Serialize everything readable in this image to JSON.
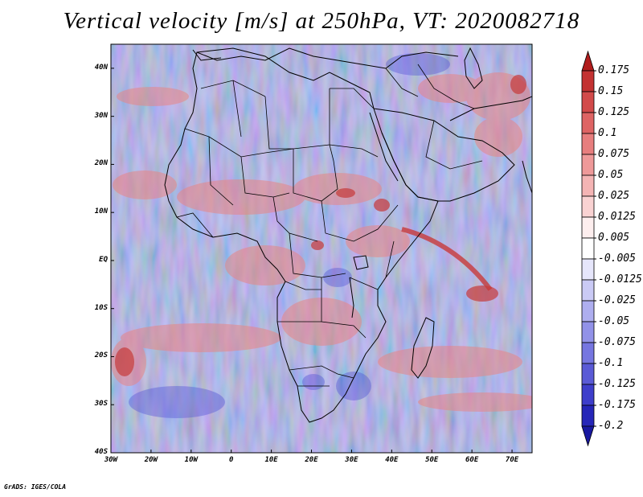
{
  "title": "Vertical velocity [m/s] at 250hPa, VT: 2020082718",
  "credit": "GrADS: IGES/COLA",
  "map": {
    "lon_range": [
      -30,
      75
    ],
    "lat_range": [
      -40,
      45
    ],
    "lat_ticks": [
      {
        "value": 40,
        "label": "40N"
      },
      {
        "value": 30,
        "label": "30N"
      },
      {
        "value": 20,
        "label": "20N"
      },
      {
        "value": 10,
        "label": "10N"
      },
      {
        "value": 0,
        "label": "EQ"
      },
      {
        "value": -10,
        "label": "10S"
      },
      {
        "value": -20,
        "label": "20S"
      },
      {
        "value": -30,
        "label": "30S"
      },
      {
        "value": -40,
        "label": "40S"
      }
    ],
    "lon_ticks": [
      {
        "value": -30,
        "label": "30W"
      },
      {
        "value": -20,
        "label": "20W"
      },
      {
        "value": -10,
        "label": "10W"
      },
      {
        "value": 0,
        "label": "0"
      },
      {
        "value": 10,
        "label": "10E"
      },
      {
        "value": 20,
        "label": "20E"
      },
      {
        "value": 30,
        "label": "30E"
      },
      {
        "value": 40,
        "label": "40E"
      },
      {
        "value": 50,
        "label": "50E"
      },
      {
        "value": 60,
        "label": "60E"
      },
      {
        "value": 70,
        "label": "70E"
      }
    ]
  },
  "colorbar": {
    "labels": [
      "0.175",
      "0.15",
      "0.125",
      "0.1",
      "0.075",
      "0.05",
      "0.025",
      "0.0125",
      "0.005",
      "-0.005",
      "-0.0125",
      "-0.025",
      "-0.05",
      "-0.075",
      "-0.1",
      "-0.125",
      "-0.175",
      "-0.2"
    ],
    "colors": [
      "#b01c1c",
      "#c33232",
      "#d24a4a",
      "#de6464",
      "#e77e7e",
      "#ee9999",
      "#f4b4b4",
      "#f9d2d2",
      "#fdeeee",
      "#ffffff",
      "#e6e6fb",
      "#cacaf5",
      "#aeaeef",
      "#9292e8",
      "#7676e0",
      "#5a5ad6",
      "#3e3ecb",
      "#2626b8",
      "#1818a0"
    ]
  }
}
